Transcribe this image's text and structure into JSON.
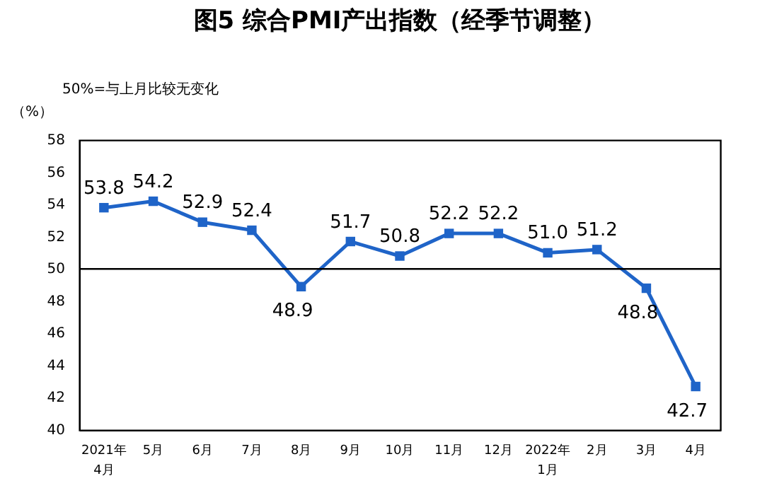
{
  "chart_data": {
    "type": "line",
    "title": "图5  综合PMI产出指数（经季节调整）",
    "ylabel": "（%）",
    "annotations": [
      "50%=与上月比较无变化"
    ],
    "categories": [
      "2021年\n4月",
      "5月",
      "6月",
      "7月",
      "8月",
      "9月",
      "10月",
      "11月",
      "12月",
      "2022年\n1月",
      "2月",
      "3月",
      "4月"
    ],
    "series": [
      {
        "color": "#1f64c8",
        "values": [
          53.8,
          54.2,
          52.9,
          52.4,
          48.9,
          51.7,
          50.8,
          52.2,
          52.2,
          51.0,
          51.2,
          48.8,
          42.7
        ]
      }
    ],
    "ylim": [
      40,
      58
    ],
    "yticks": [
      40,
      42,
      44,
      46,
      48,
      50,
      52,
      54,
      56,
      58
    ],
    "ref_lines": [
      {
        "axis": "y",
        "value": 50,
        "color": "#000000"
      }
    ],
    "value_labels": [
      "53.8",
      "54.2",
      "52.9",
      "52.4",
      "48.9",
      "51.7",
      "50.8",
      "52.2",
      "52.2",
      "51.0",
      "51.2",
      "48.8",
      "42.7"
    ],
    "marker": "square",
    "grid": false,
    "line_style": "solid"
  }
}
